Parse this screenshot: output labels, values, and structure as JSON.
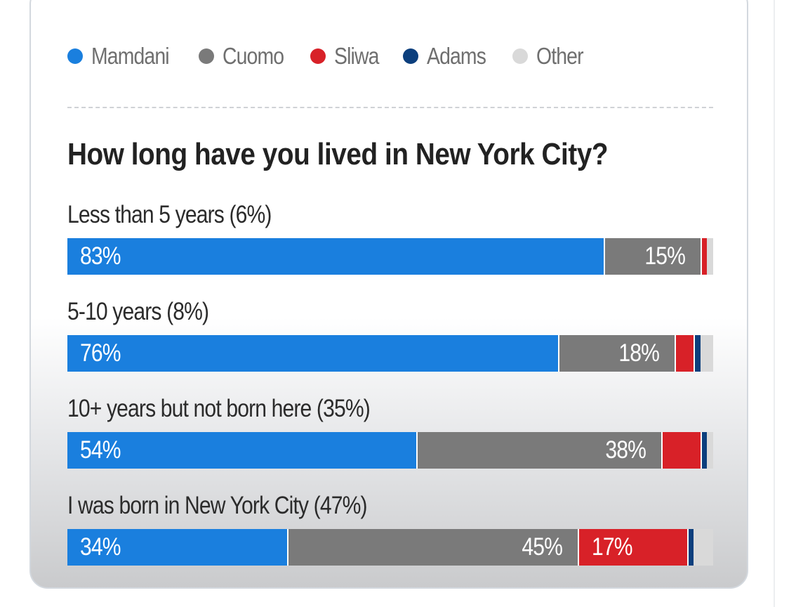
{
  "legend": [
    {
      "name": "Mamdani",
      "color": "#1a7fde"
    },
    {
      "name": "Cuomo",
      "color": "#7a7a7a"
    },
    {
      "name": "Sliwa",
      "color": "#d82128"
    },
    {
      "name": "Adams",
      "color": "#0c3f7d"
    },
    {
      "name": "Other",
      "color": "#d9d9d9"
    }
  ],
  "chart_data": {
    "type": "bar",
    "orientation": "horizontal",
    "stacked": true,
    "title": "How long have you lived in New York City?",
    "categories": [
      "Less than 5 years (6%)",
      "5-10 years (8%)",
      "10+ years but not born here (35%)",
      "I was born in New York City (47%)"
    ],
    "series": [
      {
        "name": "Mamdani",
        "color": "#1a7fde",
        "values": [
          83,
          76,
          54,
          34
        ],
        "labels": [
          "83%",
          "76%",
          "54%",
          "34%"
        ]
      },
      {
        "name": "Cuomo",
        "color": "#7a7a7a",
        "values": [
          15,
          18,
          38,
          45
        ],
        "labels": [
          "15%",
          "18%",
          "38%",
          "45%"
        ]
      },
      {
        "name": "Sliwa",
        "color": "#d82128",
        "values": [
          1,
          3,
          6,
          17
        ],
        "labels": [
          "",
          "",
          "",
          "17%"
        ]
      },
      {
        "name": "Adams",
        "color": "#0c3f7d",
        "values": [
          0,
          1,
          1,
          1
        ],
        "labels": [
          "",
          "",
          "",
          ""
        ]
      },
      {
        "name": "Other",
        "color": "#d9d9d9",
        "values": [
          1,
          2,
          1,
          3
        ],
        "labels": [
          "",
          "",
          "",
          ""
        ]
      }
    ],
    "xlim": [
      0,
      100
    ],
    "grid": false,
    "legend_position": "top-left"
  }
}
